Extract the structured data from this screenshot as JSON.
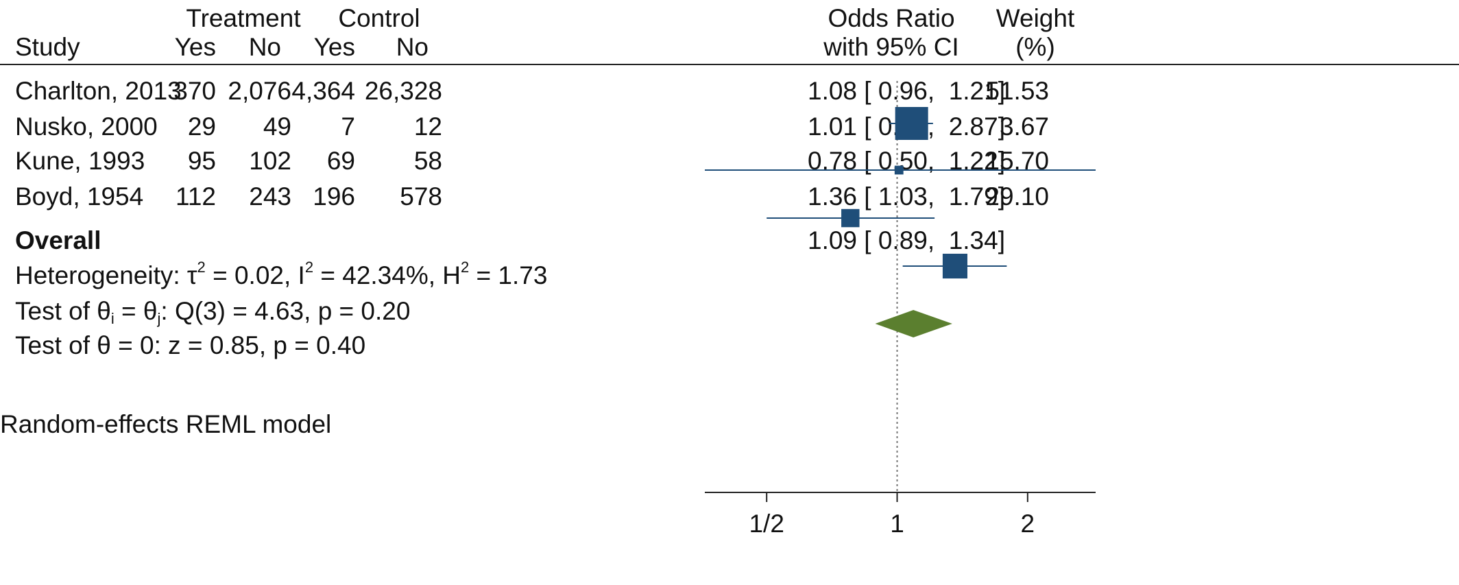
{
  "header": {
    "study": "Study",
    "treatment": "Treatment",
    "control": "Control",
    "yes": "Yes",
    "no": "No",
    "or_line1": "Odds Ratio",
    "or_line2": "with 95% CI",
    "weight_line1": "Weight",
    "weight_line2": "(%)"
  },
  "rows": [
    {
      "study": "Charlton, 2013",
      "t_yes": "370",
      "t_no": "2,076",
      "c_yes": "4,364",
      "c_no": "26,328",
      "ci_text": "1.08 [ 0.96,  1.21]",
      "weight": "51.53"
    },
    {
      "study": "Nusko, 2000",
      "t_yes": "29",
      "t_no": "49",
      "c_yes": "7",
      "c_no": "12",
      "ci_text": "1.01 [ 0.36,  2.87]",
      "weight": "3.67"
    },
    {
      "study": "Kune, 1993",
      "t_yes": "95",
      "t_no": "102",
      "c_yes": "69",
      "c_no": "58",
      "ci_text": "0.78 [ 0.50,  1.22]",
      "weight": "15.70"
    },
    {
      "study": "Boyd, 1954",
      "t_yes": "112",
      "t_no": "243",
      "c_yes": "196",
      "c_no": "578",
      "ci_text": "1.36 [ 1.03,  1.79]",
      "weight": "29.10"
    }
  ],
  "overall": {
    "label": "Overall",
    "ci_text": "1.09 [ 0.89,  1.34]"
  },
  "stats": {
    "heterogeneity_prefix": "Heterogeneity: τ",
    "tau_exp": "2",
    "i2_prefix": " = 0.02, I",
    "i2_exp": "2",
    "h2_prefix": " = 42.34%, H",
    "h2_exp": "2",
    "h2_suffix": " = 1.73",
    "test1_a": "Test of θ",
    "test1_sub_i": "i",
    "test1_b": " = θ",
    "test1_sub_j": "j",
    "test1_c": ": Q(3) = 4.63, p = 0.20",
    "test2": "Test of θ = 0: z = 0.85, p = 0.40"
  },
  "footnote": "Random-effects REML model",
  "colors": {
    "marker": "#1f4e79",
    "diamond": "#5b7f2f",
    "line": "#1f4e79",
    "axis": "#222222"
  },
  "chart_data": {
    "type": "forest",
    "xscale": "log",
    "xlim": [
      0.36,
      2.87
    ],
    "xticks": [
      0.5,
      1,
      2
    ],
    "xtick_labels": [
      "1/2",
      "1",
      "2"
    ],
    "reference_line": 1,
    "studies": [
      {
        "name": "Charlton, 2013",
        "or": 1.08,
        "lo": 0.96,
        "hi": 1.21,
        "weight": 51.53
      },
      {
        "name": "Nusko, 2000",
        "or": 1.01,
        "lo": 0.36,
        "hi": 2.87,
        "weight": 3.67
      },
      {
        "name": "Kune, 1993",
        "or": 0.78,
        "lo": 0.5,
        "hi": 1.22,
        "weight": 15.7
      },
      {
        "name": "Boyd, 1954",
        "or": 1.36,
        "lo": 1.03,
        "hi": 1.79,
        "weight": 29.1
      }
    ],
    "overall": {
      "or": 1.09,
      "lo": 0.89,
      "hi": 1.34
    }
  }
}
